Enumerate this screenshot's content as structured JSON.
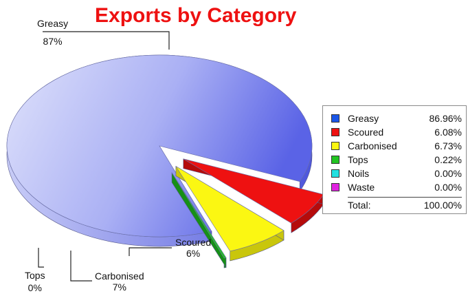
{
  "chart_data": {
    "type": "pie",
    "title": "Exports by Category",
    "exploded": true,
    "style": "3d",
    "legend_position": "right",
    "slices": [
      {
        "name": "Greasy",
        "value": 86.96,
        "label_pct": "87%",
        "color": "#8f97ef",
        "legend_color": "#1a56e8"
      },
      {
        "name": "Scoured",
        "value": 6.08,
        "label_pct": "6%",
        "color": "#ee1111",
        "legend_color": "#ee1111"
      },
      {
        "name": "Carbonised",
        "value": 6.73,
        "label_pct": "7%",
        "color": "#fbf712",
        "legend_color": "#fbf712"
      },
      {
        "name": "Tops",
        "value": 0.22,
        "label_pct": "0%",
        "color": "#22c422",
        "legend_color": "#22c422"
      },
      {
        "name": "Noils",
        "value": 0.0,
        "label_pct": null,
        "color": "#22e0e0",
        "legend_color": "#22e0e0"
      },
      {
        "name": "Waste",
        "value": 0.0,
        "label_pct": null,
        "color": "#e022e0",
        "legend_color": "#e022e0"
      }
    ],
    "legend": {
      "rows": [
        {
          "name": "Greasy",
          "pct": "86.96%"
        },
        {
          "name": "Scoured",
          "pct": "6.08%"
        },
        {
          "name": "Carbonised",
          "pct": "6.73%"
        },
        {
          "name": "Tops",
          "pct": "0.22%"
        },
        {
          "name": "Noils",
          "pct": "0.00%"
        },
        {
          "name": "Waste",
          "pct": "0.00%"
        }
      ],
      "total_label": "Total:",
      "total_pct": "100.00%"
    }
  }
}
